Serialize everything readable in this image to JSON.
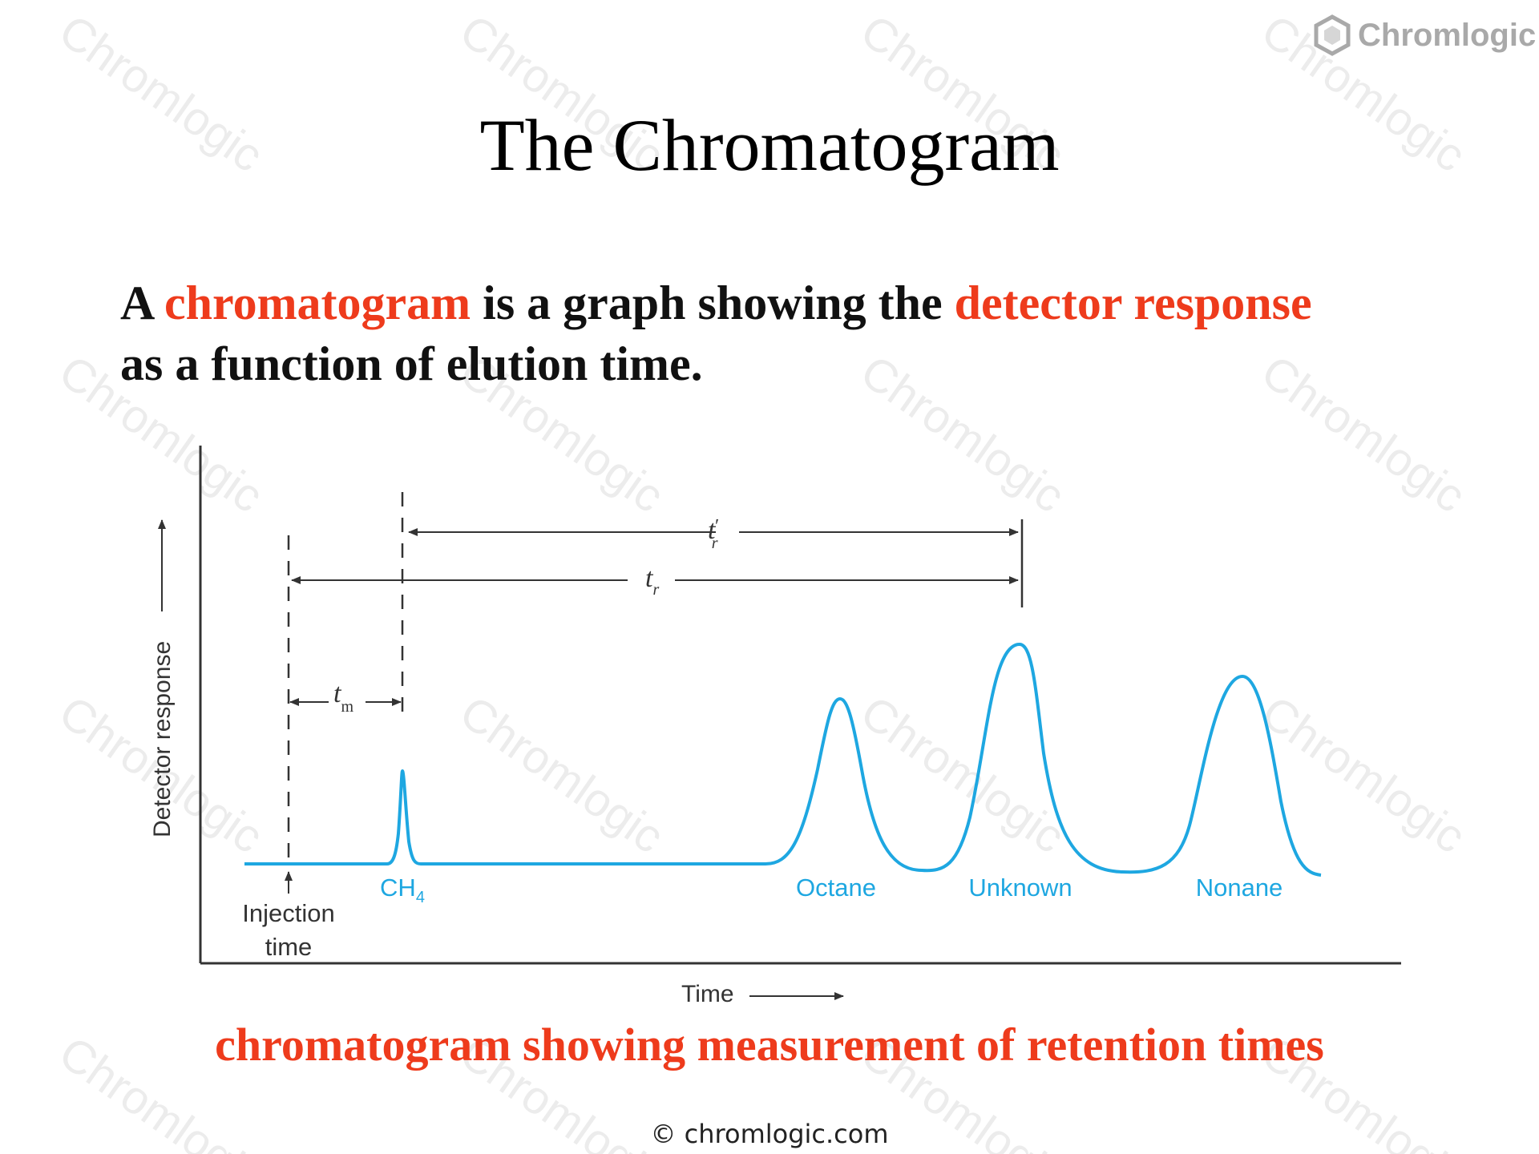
{
  "watermark": "Chromlogic",
  "logo": {
    "text": "Chromlogic",
    "icon": "hexagon-logo-icon"
  },
  "title": "The Chromatogram",
  "intro": {
    "part1": "A ",
    "term1": "chromatogram",
    "part2": " is a graph showing the ",
    "term2": "detector response",
    "part3": "as a function of elution time."
  },
  "diagram": {
    "y_axis_label": "Detector response",
    "x_axis_label": "Time",
    "injection_label_line1": "Injection",
    "injection_label_line2": "time",
    "tm_label": "t",
    "tm_sub": "m",
    "tr_label": "t",
    "tr_sub": "r",
    "trp_label": "t",
    "trp_prime": "′",
    "trp_sub": "r",
    "peaks": [
      {
        "label": "CH",
        "sub": "4"
      },
      {
        "label": "Octane"
      },
      {
        "label": "Unknown"
      },
      {
        "label": "Nonane"
      }
    ],
    "colors": {
      "trace": "#1ea7e1",
      "peak_label": "#1ea7e1",
      "axis": "#333333"
    }
  },
  "caption": "chromatogram showing measurement of retention times",
  "footer": "© chromlogic.com"
}
